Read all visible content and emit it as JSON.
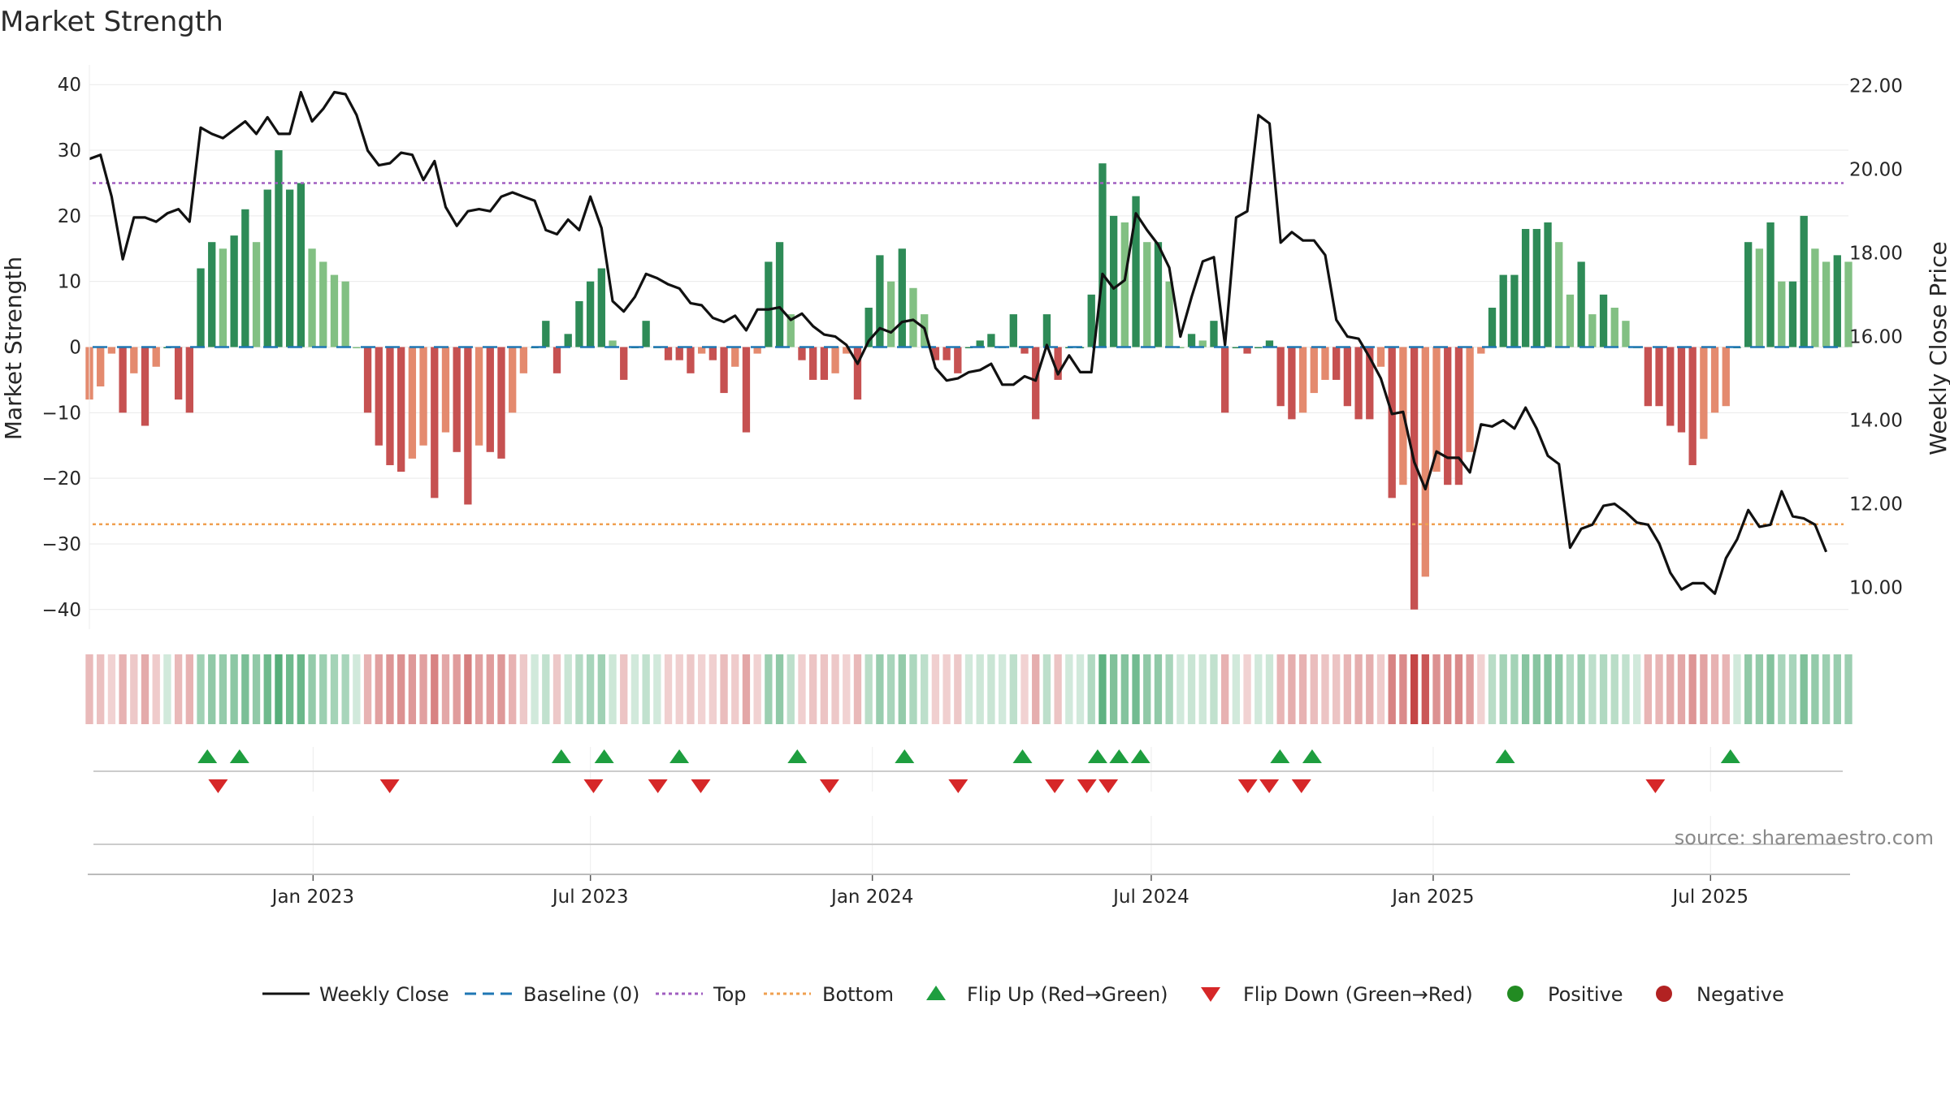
{
  "colors": {
    "pos_strong": "#2e8b57",
    "pos_light": "#82c083",
    "neg_strong": "#c65151",
    "neg_light": "#e48a6e",
    "line": "#111111",
    "baseline": "#1f77b4",
    "top_line": "#a05ec0",
    "bottom_line": "#f0a050",
    "flip_up": "#1e9e3f",
    "flip_down": "#d62728",
    "positive": "#228b22",
    "negative": "#b22222"
  },
  "title": "Market Strength",
  "source": "source: sharemaestro.com",
  "legend": {
    "weekly_close": "Weekly Close",
    "baseline": "Baseline (0)",
    "top": "Top",
    "bottom": "Bottom",
    "flip_up": "Flip Up (Red→Green)",
    "flip_down": "Flip Down (Green→Red)",
    "positive": "Positive",
    "negative": "Negative"
  },
  "chart_data": {
    "type": "bar",
    "title": "Market Strength",
    "ylabel": "Market Strength",
    "ylabel_right": "Weekly Close Price",
    "ylim": [
      -43,
      43
    ],
    "ylim_right": [
      9.0,
      22.5
    ],
    "y_ticks": [
      40,
      30,
      20,
      10,
      0,
      -10,
      -20,
      -30,
      -40
    ],
    "y_tick_labels": [
      "40",
      "30",
      "20",
      "10",
      "0",
      "−10",
      "−20",
      "−30",
      "−40"
    ],
    "y_right_ticks": [
      22,
      20,
      18,
      16,
      14,
      12,
      10
    ],
    "y_right_tick_labels": [
      "22.00",
      "20.00",
      "18.00",
      "16.00",
      "14.00",
      "12.00",
      "10.00"
    ],
    "x_start": "2022-08-08",
    "x_end": "2025-09-29",
    "x_ticks": [
      "2023-01-01",
      "2023-07-01",
      "2024-01-01",
      "2024-07-01",
      "2025-01-01",
      "2025-07-01"
    ],
    "x_tick_labels": [
      "Jan 2023",
      "Jul 2023",
      "Jan 2024",
      "Jul 2024",
      "Jan 2025",
      "Jul 2025"
    ],
    "top_threshold": 25,
    "bottom_threshold": -27,
    "baseline": 0,
    "grid": true,
    "legend_position": "bottom",
    "series": [
      {
        "name": "Market Strength",
        "type": "bar",
        "values": [
          -8,
          -6,
          -1,
          -10,
          -4,
          -12,
          -3,
          0,
          -8,
          -10,
          12,
          16,
          15,
          17,
          21,
          16,
          24,
          30,
          24,
          25,
          15,
          13,
          11,
          10,
          0,
          -10,
          -15,
          -18,
          -19,
          -17,
          -15,
          -23,
          -13,
          -16,
          -24,
          -15,
          -16,
          -17,
          -10,
          -4,
          0,
          4,
          -4,
          2,
          7,
          10,
          12,
          1,
          -5,
          0,
          4,
          0,
          -2,
          -2,
          -4,
          -1,
          -2,
          -7,
          -3,
          -13,
          -1,
          13,
          16,
          5,
          -2,
          -5,
          -5,
          -4,
          -1,
          -8,
          6,
          14,
          10,
          15,
          9,
          5,
          -2,
          -2,
          -4,
          0,
          1,
          2,
          0,
          5,
          -1,
          -11,
          5,
          -5,
          0,
          0,
          8,
          28,
          20,
          19,
          23,
          16,
          16,
          10,
          0,
          2,
          1,
          4,
          -10,
          0,
          -1,
          0,
          1,
          -9,
          -11,
          -10,
          -7,
          -5,
          -5,
          -9,
          -11,
          -11,
          -3,
          -23,
          -21,
          -40,
          -35,
          -19,
          -21,
          -21,
          -16,
          -1,
          6,
          11,
          11,
          18,
          18,
          19,
          16,
          8,
          13,
          5,
          8,
          6,
          4,
          0,
          -9,
          -9,
          -12,
          -13,
          -18,
          -14,
          -10,
          -9,
          0,
          16,
          15,
          19,
          10,
          10,
          20,
          15,
          13,
          14,
          13
        ]
      },
      {
        "name": "Weekly Close",
        "type": "line",
        "axis": "right",
        "values": [
          20.25,
          20.35,
          19.35,
          17.85,
          18.85,
          18.85,
          18.75,
          18.95,
          19.05,
          18.75,
          21.0,
          20.85,
          20.75,
          20.95,
          21.15,
          20.85,
          21.25,
          20.85,
          20.85,
          21.85,
          21.15,
          21.45,
          21.85,
          21.8,
          21.3,
          20.45,
          20.1,
          20.15,
          20.4,
          20.35,
          19.75,
          20.2,
          19.1,
          18.65,
          19.0,
          19.05,
          19.0,
          19.35,
          19.45,
          19.35,
          19.25,
          18.55,
          18.45,
          18.8,
          18.55,
          19.35,
          18.6,
          16.85,
          16.6,
          16.95,
          17.5,
          17.4,
          17.25,
          17.15,
          16.8,
          16.75,
          16.45,
          16.35,
          16.5,
          16.15,
          16.65,
          16.65,
          16.7,
          16.4,
          16.55,
          16.25,
          16.05,
          16.0,
          15.8,
          15.35,
          15.9,
          16.2,
          16.1,
          16.35,
          16.4,
          16.2,
          15.25,
          14.95,
          15.0,
          15.15,
          15.2,
          15.35,
          14.85,
          14.85,
          15.05,
          14.95,
          15.8,
          15.1,
          15.55,
          15.15,
          15.15,
          17.5,
          17.15,
          17.35,
          18.95,
          18.55,
          18.2,
          17.65,
          16.0,
          16.95,
          17.8,
          17.9,
          15.8,
          18.85,
          19.0,
          21.3,
          21.1,
          18.25,
          18.5,
          18.3,
          18.3,
          17.95,
          16.4,
          16.0,
          15.95,
          15.5,
          15.0,
          14.15,
          14.2,
          13.0,
          12.35,
          13.25,
          13.1,
          13.1,
          12.75,
          13.9,
          13.85,
          14.0,
          13.8,
          14.3,
          13.8,
          13.15,
          12.95,
          10.95,
          11.4,
          11.5,
          11.95,
          12.0,
          11.8,
          11.55,
          11.5,
          11.05,
          10.35,
          9.95,
          10.1,
          10.1,
          9.85,
          10.7,
          11.15,
          11.85,
          11.45,
          11.5,
          12.3,
          11.7,
          11.65,
          11.5,
          10.85
        ]
      }
    ],
    "flip_up_dates": [
      "2022-10-24",
      "2022-11-14",
      "2023-06-12",
      "2023-07-10",
      "2023-08-28",
      "2023-11-13",
      "2024-01-22",
      "2024-04-08",
      "2024-05-27",
      "2024-06-10",
      "2024-06-24",
      "2024-09-23",
      "2024-10-14",
      "2025-02-17",
      "2025-07-14"
    ],
    "flip_down_dates": [
      "2022-10-31",
      "2023-02-20",
      "2023-07-03",
      "2023-08-14",
      "2023-09-11",
      "2023-12-04",
      "2024-02-26",
      "2024-04-29",
      "2024-05-20",
      "2024-06-03",
      "2024-09-02",
      "2024-09-16",
      "2024-10-07",
      "2025-05-26"
    ]
  }
}
